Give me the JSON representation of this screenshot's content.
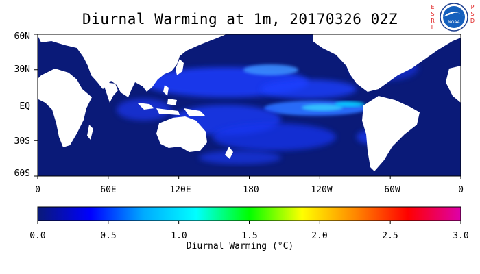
{
  "title": "Diurnal Warming at 1m, 20170326 02Z",
  "logo": {
    "left_letters": "E S R L",
    "right_letters": "P S D",
    "emblem": "noaa-logo-icon",
    "emblem_text": "NOAA"
  },
  "map": {
    "lat_labels": [
      "60N",
      "30N",
      "EQ",
      "30S",
      "60S"
    ],
    "lon_labels": [
      "0",
      "60E",
      "120E",
      "180",
      "120W",
      "60W",
      "0"
    ],
    "ocean_color": "#0a1a78",
    "land_color": "#ffffff"
  },
  "colorbar": {
    "title": "Diurnal Warming (°C)",
    "ticks": [
      "0.0",
      "0.5",
      "1.0",
      "1.5",
      "2.0",
      "2.5",
      "3.0"
    ],
    "min": 0.0,
    "max": 3.0,
    "stops": [
      "#0a1a78",
      "#0000ff",
      "#00aaff",
      "#00ffff",
      "#00ff00",
      "#ffff00",
      "#ff8800",
      "#ff0000",
      "#dd00aa"
    ]
  }
}
